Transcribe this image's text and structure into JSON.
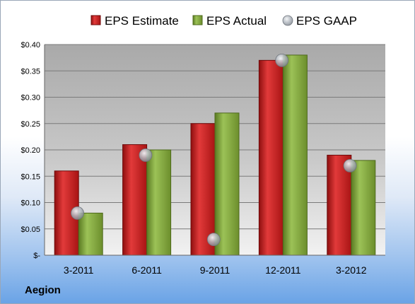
{
  "company": "Aegion",
  "chart_data": {
    "type": "bar",
    "title": "",
    "xlabel": "",
    "ylabel": "",
    "categories": [
      "3-2011",
      "6-2011",
      "9-2011",
      "12-2011",
      "3-2012"
    ],
    "series": [
      {
        "name": "EPS Estimate",
        "kind": "bar",
        "color": "#cc1f1f",
        "values": [
          0.16,
          0.21,
          0.25,
          0.37,
          0.19
        ]
      },
      {
        "name": "EPS Actual",
        "kind": "bar",
        "color": "#7fa33a",
        "values": [
          0.08,
          0.2,
          0.27,
          0.38,
          0.18
        ]
      },
      {
        "name": "EPS GAAP",
        "kind": "marker",
        "color": "#b9bec6",
        "values": [
          0.08,
          0.19,
          0.03,
          0.37,
          0.17
        ]
      }
    ],
    "ylim": [
      0,
      0.4
    ],
    "yticks": [
      0,
      0.05,
      0.1,
      0.15,
      0.2,
      0.25,
      0.3,
      0.35,
      0.4
    ],
    "ytick_labels": [
      "$-",
      "$0.05",
      "$0.10",
      "$0.15",
      "$0.20",
      "$0.25",
      "$0.30",
      "$0.35",
      "$0.40"
    ],
    "grid": true,
    "legend_position": "top"
  }
}
